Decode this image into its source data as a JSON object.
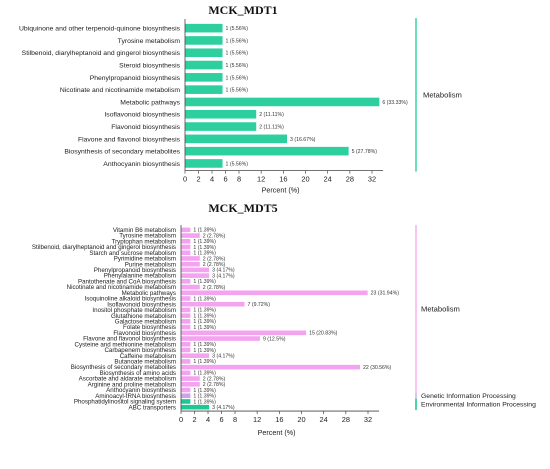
{
  "colors": {
    "Metabolism": "#f4a3f0",
    "Metabolism_top": "#2ecf9e",
    "Genetic Information Processing": "#c8a4e8",
    "Environmental Information Processing": "#1ec896"
  },
  "chart_data": [
    {
      "type": "bar",
      "orientation": "horizontal",
      "title": "MCK_MDT1",
      "xlabel": "Percent (%)",
      "xlim": [
        0,
        34
      ],
      "xticks": [
        0,
        2,
        4,
        6,
        8,
        12,
        16,
        20,
        24,
        28,
        32
      ],
      "categories": [
        "Ubiquinone and other terpenoid-quinone biosynthesis",
        "Tyrosine metabolism",
        "Stilbenoid, diarylheptanoid and gingerol biosynthesis",
        "Steroid biosynthesis",
        "Phenylpropanoid biosynthesis",
        "Nicotinate and nicotinamide metabolism",
        "Metabolic pathways",
        "Isoflavonoid biosynthesis",
        "Flavonoid biosynthesis",
        "Flavone and flavonol biosynthesis",
        "Biosynthesis of secondary metabolites",
        "Anthocyanin biosynthesis"
      ],
      "values": [
        5.56,
        5.56,
        5.56,
        5.56,
        5.56,
        5.56,
        33.33,
        11.11,
        11.11,
        16.67,
        27.78,
        5.56
      ],
      "value_labels": [
        "1 (5.56%)",
        "1 (5.56%)",
        "1 (5.56%)",
        "1 (5.56%)",
        "1 (5.56%)",
        "1 (5.56%)",
        "6 (33.33%)",
        "2 (11.11%)",
        "2 (11.11%)",
        "3 (16.67%)",
        "5 (27.78%)",
        "1 (5.56%)"
      ],
      "groups": [
        {
          "name": "Metabolism",
          "first": 0,
          "last": 11
        }
      ]
    },
    {
      "type": "bar",
      "orientation": "horizontal",
      "title": "MCK_MDT5",
      "xlabel": "Percent (%)",
      "xlim": [
        0,
        34
      ],
      "xticks": [
        0,
        2,
        4,
        6,
        8,
        12,
        16,
        20,
        24,
        28,
        32
      ],
      "categories": [
        "Vitamin B6 metabolism",
        "Tyrosine metabolism",
        "Tryptophan metabolism",
        "Stilbenoid, diarylheptanoid and gingerol biosynthesis",
        "Starch and sucrose metabolism",
        "Pyrimidine metabolism",
        "Purine metabolism",
        "Phenylpropanoid biosynthesis",
        "Phenylalanine metabolism",
        "Pantothenate and CoA biosynthesis",
        "Nicotinate and nicotinamide metabolism",
        "Metabolic pathways",
        "Isoquinoline alkaloid biosynthesis",
        "Isoflavonoid biosynthesis",
        "Inositol phosphate metabolism",
        "Glutathione metabolism",
        "Galactose metabolism",
        "Folate biosynthesis",
        "Flavonoid biosynthesis",
        "Flavone and flavonol biosynthesis",
        "Cysteine and methionine metabolism",
        "Carbapenem biosynthesis",
        "Caffeine metabolism",
        "Butanoate metabolism",
        "Biosynthesis of secondary metabolites",
        "Biosynthesis of amino acids",
        "Ascorbate and aldarate metabolism",
        "Arginine and proline metabolism",
        "Anthocyanin biosynthesis",
        "Aminoacyl-tRNA biosynthesis",
        "Phosphatidylinositol signaling system",
        "ABC transporters"
      ],
      "values": [
        1.39,
        2.78,
        1.39,
        1.39,
        1.39,
        2.78,
        2.78,
        4.17,
        4.17,
        1.39,
        2.78,
        31.94,
        1.39,
        9.72,
        1.39,
        1.39,
        1.39,
        1.39,
        20.83,
        12.5,
        1.39,
        1.39,
        4.17,
        1.39,
        30.56,
        1.39,
        2.78,
        2.78,
        1.39,
        1.39,
        1.39,
        4.17
      ],
      "value_labels": [
        "1 (1.39%)",
        "2 (2.78%)",
        "1 (1.39%)",
        "1 (1.39%)",
        "1 (1.39%)",
        "2 (2.78%)",
        "2 (2.78%)",
        "3 (4.17%)",
        "3 (4.17%)",
        "1 (1.39%)",
        "2 (2.78%)",
        "23 (31.94%)",
        "1 (1.39%)",
        "7 (9.72%)",
        "1 (1.39%)",
        "1 (1.39%)",
        "1 (1.39%)",
        "1 (1.39%)",
        "15 (20.83%)",
        "9 (12.5%)",
        "1 (1.39%)",
        "1 (1.39%)",
        "3 (4.17%)",
        "1 (1.39%)",
        "22 (30.56%)",
        "1 (1.39%)",
        "2 (2.78%)",
        "2 (2.78%)",
        "1 (1.39%)",
        "1 (1.39%)",
        "1 (1.39%)",
        "3 (4.17%)"
      ],
      "groups": [
        {
          "name": "Metabolism",
          "first": 0,
          "last": 28
        },
        {
          "name": "Genetic Information Processing",
          "first": 29,
          "last": 29
        },
        {
          "name": "Environmental Information Processing",
          "first": 30,
          "last": 31
        }
      ]
    }
  ]
}
